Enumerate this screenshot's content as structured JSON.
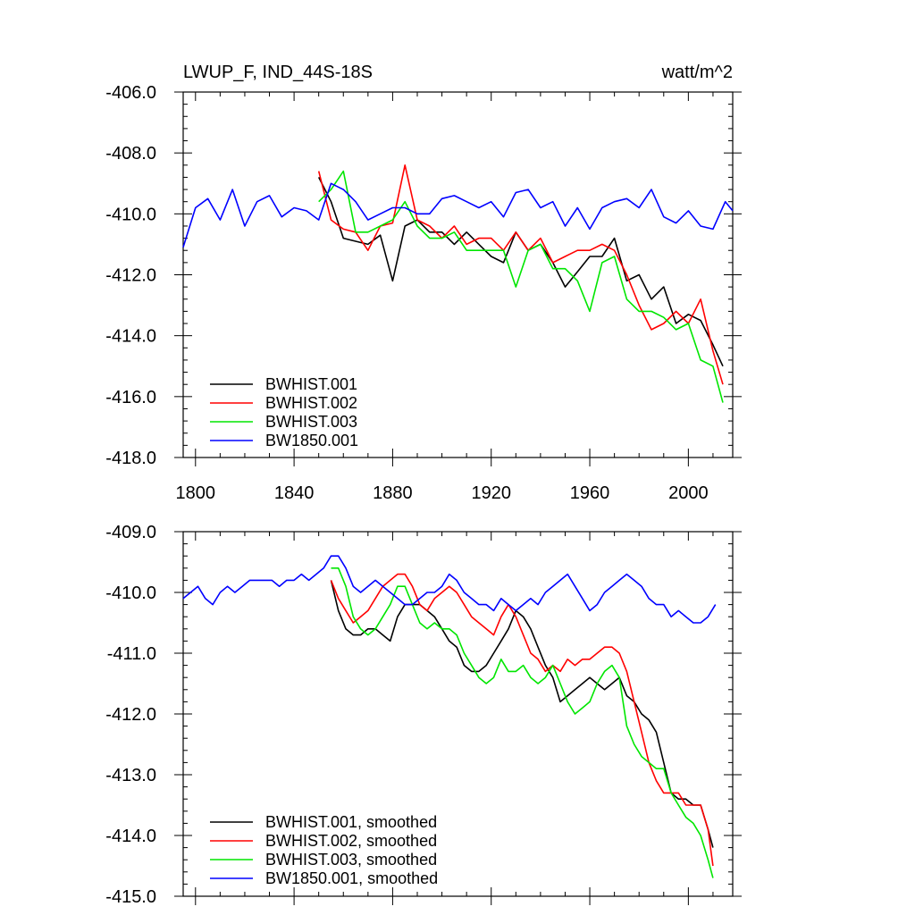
{
  "chart_data": [
    {
      "type": "line",
      "title": "LWUP_F, IND_44S-18S",
      "units": "watt/m^2",
      "xlim": [
        1795,
        2018
      ],
      "ylim": [
        -418.0,
        -406.0
      ],
      "xticks": [
        1800,
        1840,
        1880,
        1920,
        1960,
        2000
      ],
      "xtick_labels": [
        "1800",
        "1840",
        "1880",
        "1920",
        "1960",
        "2000"
      ],
      "yticks": [
        -406.0,
        -408.0,
        -410.0,
        -412.0,
        -414.0,
        -416.0,
        -418.0
      ],
      "ytick_labels": [
        "-406.0",
        "-408.0",
        "-410.0",
        "-412.0",
        "-414.0",
        "-416.0",
        "-418.0"
      ],
      "grid": false,
      "legend_position": "bottom-left",
      "series": [
        {
          "name": "BWHIST.001",
          "color": "#000000",
          "x": [
            1850,
            1855,
            1860,
            1865,
            1870,
            1875,
            1880,
            1885,
            1890,
            1895,
            1900,
            1905,
            1910,
            1915,
            1920,
            1925,
            1930,
            1935,
            1940,
            1945,
            1950,
            1955,
            1960,
            1965,
            1970,
            1975,
            1980,
            1985,
            1990,
            1995,
            2000,
            2005,
            2010,
            2014
          ],
          "y": [
            -408.8,
            -409.6,
            -410.8,
            -410.9,
            -411.0,
            -410.7,
            -412.2,
            -410.4,
            -410.2,
            -410.6,
            -410.6,
            -411.0,
            -410.6,
            -411.0,
            -411.4,
            -411.6,
            -410.6,
            -411.2,
            -411.0,
            -411.6,
            -412.4,
            -411.9,
            -411.4,
            -411.4,
            -410.8,
            -412.2,
            -412.0,
            -412.8,
            -412.4,
            -413.6,
            -413.3,
            -413.5,
            -414.3,
            -415.0
          ]
        },
        {
          "name": "BWHIST.002",
          "color": "#ff0000",
          "x": [
            1850,
            1855,
            1860,
            1865,
            1870,
            1875,
            1880,
            1885,
            1890,
            1895,
            1900,
            1905,
            1910,
            1915,
            1920,
            1925,
            1930,
            1935,
            1940,
            1945,
            1950,
            1955,
            1960,
            1965,
            1970,
            1975,
            1980,
            1985,
            1990,
            1995,
            2000,
            2005,
            2010,
            2014
          ],
          "y": [
            -408.6,
            -410.2,
            -410.5,
            -410.6,
            -411.2,
            -410.4,
            -410.3,
            -408.4,
            -410.2,
            -410.4,
            -410.8,
            -410.4,
            -411.0,
            -410.8,
            -410.8,
            -411.2,
            -410.6,
            -411.2,
            -410.8,
            -411.6,
            -411.4,
            -411.2,
            -411.2,
            -411.0,
            -411.2,
            -412.0,
            -413.0,
            -413.8,
            -413.6,
            -413.2,
            -413.6,
            -412.8,
            -414.5,
            -415.6
          ]
        },
        {
          "name": "BWHIST.003",
          "color": "#00e600",
          "x": [
            1850,
            1855,
            1860,
            1865,
            1870,
            1875,
            1880,
            1885,
            1890,
            1895,
            1900,
            1905,
            1910,
            1915,
            1920,
            1925,
            1930,
            1935,
            1940,
            1945,
            1950,
            1955,
            1960,
            1965,
            1970,
            1975,
            1980,
            1985,
            1990,
            1995,
            2000,
            2005,
            2010,
            2014
          ],
          "y": [
            -409.6,
            -409.2,
            -408.6,
            -410.6,
            -410.6,
            -410.4,
            -410.2,
            -409.6,
            -410.4,
            -410.8,
            -410.8,
            -410.6,
            -411.2,
            -411.2,
            -411.2,
            -411.2,
            -412.4,
            -411.2,
            -411.0,
            -411.8,
            -411.8,
            -412.2,
            -413.2,
            -411.6,
            -411.4,
            -412.8,
            -413.2,
            -413.2,
            -413.4,
            -413.8,
            -413.6,
            -414.8,
            -415.0,
            -416.2
          ]
        },
        {
          "name": "BW1850.001",
          "color": "#0000ff",
          "x": [
            1795,
            1800,
            1805,
            1810,
            1815,
            1820,
            1825,
            1830,
            1835,
            1840,
            1845,
            1850,
            1855,
            1860,
            1865,
            1870,
            1875,
            1880,
            1885,
            1890,
            1895,
            1900,
            1905,
            1910,
            1915,
            1920,
            1925,
            1930,
            1935,
            1940,
            1945,
            1950,
            1955,
            1960,
            1965,
            1970,
            1975,
            1980,
            1985,
            1990,
            1995,
            2000,
            2005,
            2010,
            2015,
            2018
          ],
          "y": [
            -411.1,
            -409.8,
            -409.5,
            -410.2,
            -409.2,
            -410.4,
            -409.6,
            -409.4,
            -410.1,
            -409.8,
            -409.9,
            -410.2,
            -409.0,
            -409.2,
            -409.6,
            -410.2,
            -410.0,
            -409.8,
            -409.8,
            -410.0,
            -410.0,
            -409.5,
            -409.4,
            -409.6,
            -409.8,
            -409.6,
            -410.1,
            -409.3,
            -409.2,
            -409.8,
            -409.6,
            -410.4,
            -409.8,
            -410.5,
            -409.8,
            -409.6,
            -409.5,
            -409.8,
            -409.2,
            -410.1,
            -410.3,
            -409.9,
            -410.4,
            -410.5,
            -409.6,
            -409.9
          ]
        }
      ]
    },
    {
      "type": "line",
      "xlim": [
        1795,
        2018
      ],
      "ylim": [
        -415.0,
        -409.0
      ],
      "xticks": [
        1800,
        1840,
        1880,
        1920,
        1960,
        2000
      ],
      "yticks": [
        -409.0,
        -410.0,
        -411.0,
        -412.0,
        -413.0,
        -414.0,
        -415.0
      ],
      "ytick_labels": [
        "-409.0",
        "-410.0",
        "-411.0",
        "-412.0",
        "-413.0",
        "-414.0",
        "-415.0"
      ],
      "grid": false,
      "legend_position": "bottom-left",
      "series": [
        {
          "name": "BWHIST.001, smoothed",
          "color": "#000000",
          "x": [
            1855,
            1858,
            1861,
            1864,
            1867,
            1870,
            1873,
            1876,
            1879,
            1882,
            1885,
            1888,
            1891,
            1894,
            1897,
            1900,
            1903,
            1906,
            1909,
            1912,
            1915,
            1918,
            1921,
            1924,
            1927,
            1930,
            1933,
            1936,
            1939,
            1942,
            1945,
            1948,
            1951,
            1954,
            1957,
            1960,
            1963,
            1966,
            1969,
            1972,
            1975,
            1978,
            1981,
            1984,
            1987,
            1990,
            1993,
            1996,
            1999,
            2002,
            2005,
            2008,
            2010
          ],
          "y": [
            -409.8,
            -410.3,
            -410.6,
            -410.7,
            -410.7,
            -410.6,
            -410.6,
            -410.7,
            -410.8,
            -410.4,
            -410.2,
            -410.2,
            -410.2,
            -410.3,
            -410.4,
            -410.6,
            -410.8,
            -410.9,
            -411.2,
            -411.3,
            -411.3,
            -411.2,
            -411.0,
            -410.8,
            -410.6,
            -410.3,
            -410.4,
            -410.6,
            -410.9,
            -411.2,
            -411.4,
            -411.8,
            -411.7,
            -411.6,
            -411.5,
            -411.4,
            -411.5,
            -411.6,
            -411.5,
            -411.4,
            -411.7,
            -411.8,
            -412.0,
            -412.1,
            -412.3,
            -412.8,
            -413.3,
            -413.4,
            -413.4,
            -413.5,
            -413.5,
            -413.9,
            -414.2
          ]
        },
        {
          "name": "BWHIST.002, smoothed",
          "color": "#ff0000",
          "x": [
            1855,
            1858,
            1861,
            1864,
            1867,
            1870,
            1873,
            1876,
            1879,
            1882,
            1885,
            1888,
            1891,
            1894,
            1897,
            1900,
            1903,
            1906,
            1909,
            1912,
            1915,
            1918,
            1921,
            1924,
            1927,
            1930,
            1933,
            1936,
            1939,
            1942,
            1945,
            1948,
            1951,
            1954,
            1957,
            1960,
            1963,
            1966,
            1969,
            1972,
            1975,
            1978,
            1981,
            1984,
            1987,
            1990,
            1993,
            1996,
            1999,
            2002,
            2005,
            2008,
            2010
          ],
          "y": [
            -409.8,
            -410.1,
            -410.3,
            -410.5,
            -410.4,
            -410.3,
            -410.1,
            -409.9,
            -409.8,
            -409.7,
            -409.7,
            -409.9,
            -410.2,
            -410.3,
            -410.1,
            -410.0,
            -409.9,
            -410.0,
            -410.2,
            -410.4,
            -410.5,
            -410.6,
            -410.7,
            -410.4,
            -410.2,
            -410.4,
            -410.7,
            -411.0,
            -411.1,
            -411.3,
            -411.2,
            -411.3,
            -411.1,
            -411.2,
            -411.1,
            -411.1,
            -411.0,
            -410.9,
            -410.9,
            -411.0,
            -411.3,
            -411.8,
            -412.3,
            -412.8,
            -413.1,
            -413.3,
            -413.3,
            -413.3,
            -413.5,
            -413.5,
            -413.5,
            -413.9,
            -414.5
          ]
        },
        {
          "name": "BWHIST.003, smoothed",
          "color": "#00e600",
          "x": [
            1855,
            1858,
            1861,
            1864,
            1867,
            1870,
            1873,
            1876,
            1879,
            1882,
            1885,
            1888,
            1891,
            1894,
            1897,
            1900,
            1903,
            1906,
            1909,
            1912,
            1915,
            1918,
            1921,
            1924,
            1927,
            1930,
            1933,
            1936,
            1939,
            1942,
            1945,
            1948,
            1951,
            1954,
            1957,
            1960,
            1963,
            1966,
            1969,
            1972,
            1975,
            1978,
            1981,
            1984,
            1987,
            1990,
            1993,
            1996,
            1999,
            2002,
            2005,
            2008,
            2010
          ],
          "y": [
            -409.6,
            -409.6,
            -409.9,
            -410.4,
            -410.6,
            -410.7,
            -410.6,
            -410.4,
            -410.2,
            -409.9,
            -409.9,
            -410.2,
            -410.5,
            -410.6,
            -410.5,
            -410.6,
            -410.6,
            -410.7,
            -411.0,
            -411.2,
            -411.4,
            -411.5,
            -411.4,
            -411.1,
            -411.3,
            -411.3,
            -411.2,
            -411.4,
            -411.5,
            -411.4,
            -411.2,
            -411.5,
            -411.8,
            -412.0,
            -411.9,
            -411.8,
            -411.5,
            -411.3,
            -411.2,
            -411.4,
            -412.2,
            -412.5,
            -412.7,
            -412.8,
            -412.9,
            -412.9,
            -413.3,
            -413.5,
            -413.7,
            -413.8,
            -414.0,
            -414.4,
            -414.7
          ]
        },
        {
          "name": "BW1850.001, smoothed",
          "color": "#0000ff",
          "x": [
            1795,
            1798,
            1801,
            1804,
            1807,
            1810,
            1813,
            1816,
            1819,
            1822,
            1825,
            1828,
            1831,
            1834,
            1837,
            1840,
            1843,
            1846,
            1849,
            1852,
            1855,
            1858,
            1861,
            1864,
            1867,
            1870,
            1873,
            1876,
            1879,
            1882,
            1885,
            1888,
            1891,
            1894,
            1897,
            1900,
            1903,
            1906,
            1909,
            1912,
            1915,
            1918,
            1921,
            1924,
            1927,
            1930,
            1933,
            1936,
            1939,
            1942,
            1945,
            1948,
            1951,
            1954,
            1957,
            1960,
            1963,
            1966,
            1969,
            1972,
            1975,
            1978,
            1981,
            1984,
            1987,
            1990,
            1993,
            1996,
            1999,
            2002,
            2005,
            2008,
            2011
          ],
          "y": [
            -410.1,
            -410.0,
            -409.9,
            -410.1,
            -410.2,
            -410.0,
            -409.9,
            -410.0,
            -409.9,
            -409.8,
            -409.8,
            -409.8,
            -409.8,
            -409.9,
            -409.8,
            -409.8,
            -409.7,
            -409.8,
            -409.7,
            -409.6,
            -409.4,
            -409.4,
            -409.6,
            -409.9,
            -410.0,
            -409.9,
            -409.8,
            -409.9,
            -410.0,
            -410.1,
            -410.2,
            -410.2,
            -410.1,
            -410.0,
            -410.0,
            -409.9,
            -409.7,
            -409.8,
            -410.0,
            -410.1,
            -410.2,
            -410.2,
            -410.3,
            -410.1,
            -410.2,
            -410.3,
            -410.2,
            -410.1,
            -410.2,
            -410.0,
            -409.9,
            -409.8,
            -409.7,
            -409.9,
            -410.1,
            -410.3,
            -410.2,
            -410.0,
            -409.9,
            -409.8,
            -409.7,
            -409.8,
            -409.9,
            -410.1,
            -410.2,
            -410.2,
            -410.4,
            -410.3,
            -410.4,
            -410.5,
            -410.5,
            -410.4,
            -410.2
          ]
        }
      ]
    }
  ]
}
